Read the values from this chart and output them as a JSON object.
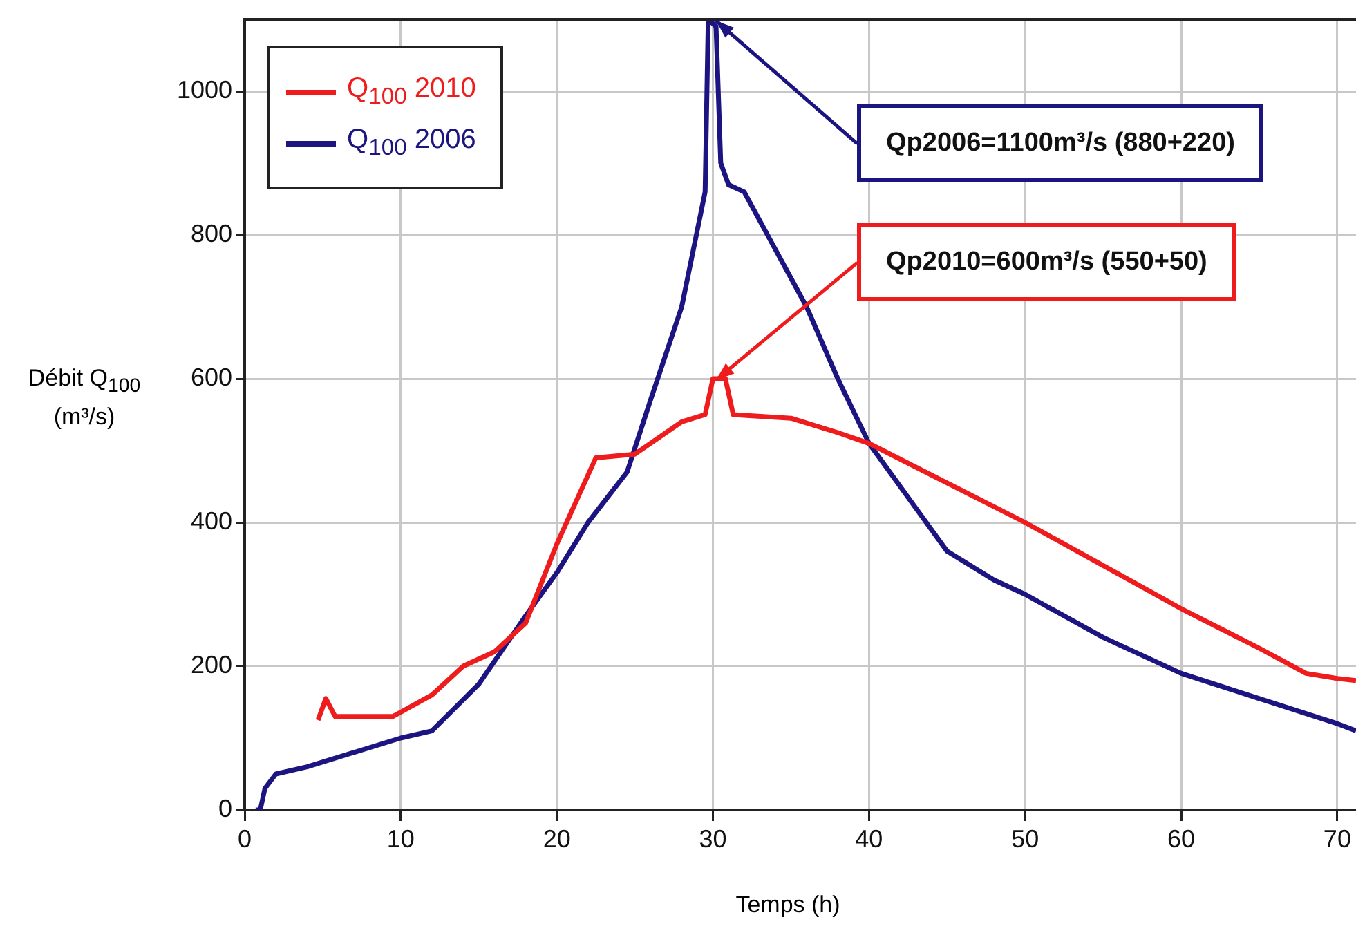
{
  "chart_data": {
    "type": "line",
    "xlabel": "Temps (h)",
    "ylabel": "Débit Q$_{100}$ (m³/s)",
    "xlim": [
      0,
      71.2
    ],
    "xticks": [
      0,
      10,
      20,
      30,
      40,
      50,
      60,
      70
    ],
    "ylim": [
      0,
      1100
    ],
    "yticks": [
      0,
      200,
      400,
      600,
      800,
      1000
    ],
    "grid": true,
    "legend": "top left",
    "marker": "none",
    "line_style": "solid",
    "series": [
      {
        "name": "Q$_{100}$ 2010",
        "color": "#ee1c1c",
        "x": [
          4.7,
          5.2,
          5.8,
          9.5,
          12,
          14,
          16,
          18,
          20,
          22.5,
          25,
          28,
          29.5,
          30,
          30.8,
          31.3,
          35,
          38,
          40,
          45,
          50,
          55,
          60,
          65,
          68,
          70,
          71.2
        ],
        "values": [
          125,
          155,
          130,
          130,
          160,
          200,
          220,
          260,
          370,
          490,
          495,
          540,
          550,
          600,
          600,
          550,
          545,
          525,
          510,
          455,
          400,
          340,
          280,
          225,
          190,
          183,
          180
        ]
      },
      {
        "name": "Q$_{100}$ 2006",
        "color": "#1c1480",
        "x": [
          0.7,
          1,
          1.3,
          2,
          4,
          10,
          12,
          15,
          18,
          20,
          22,
          24.5,
          26,
          28,
          29.5,
          29.7,
          30.2,
          30.5,
          31,
          32,
          34,
          36,
          38,
          40,
          43,
          45,
          48,
          50,
          55,
          60,
          65,
          70,
          71.2
        ],
        "values": [
          0,
          0,
          30,
          50,
          60,
          100,
          110,
          175,
          270,
          330,
          400,
          470,
          570,
          700,
          860,
          1100,
          1090,
          900,
          870,
          860,
          780,
          700,
          600,
          510,
          420,
          360,
          320,
          300,
          240,
          190,
          155,
          120,
          110
        ]
      }
    ],
    "annotations": [
      {
        "text": "Qp2006=1100m³/s (880+220)",
        "x": 30,
        "y": 1100
      },
      {
        "text": "Qp2010=600m³/s (550+50)",
        "x": 30,
        "y": 600
      }
    ]
  }
}
